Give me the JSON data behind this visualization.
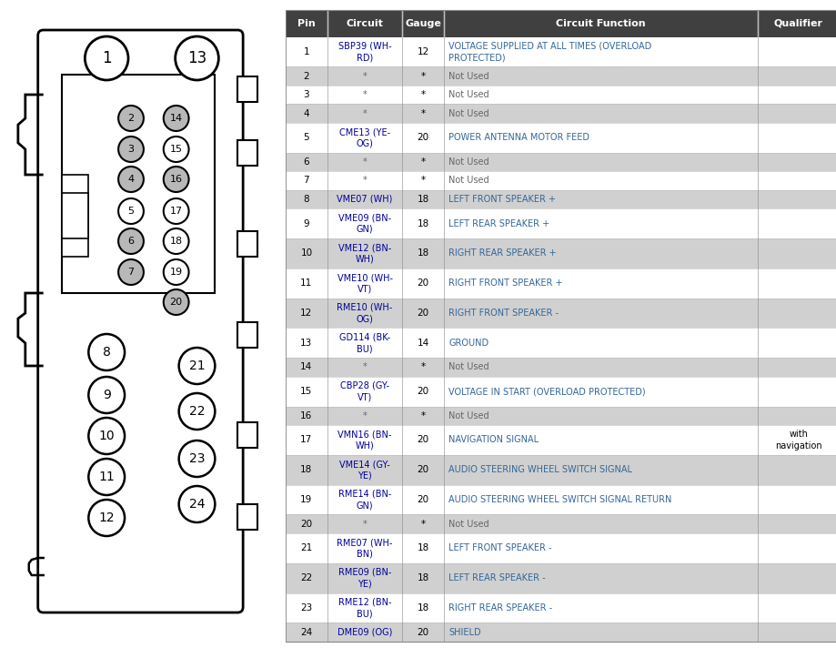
{
  "bg_color": "#ffffff",
  "header_bg": "#404040",
  "header_fg": "#ffffff",
  "odd_row_bg": "#ffffff",
  "even_row_bg": "#d0d0d0",
  "col_headers": [
    "Pin",
    "Circuit",
    "Gauge",
    "Circuit Function",
    "Qualifier"
  ],
  "rows": [
    {
      "pin": "1",
      "circuit": "SBP39 (WH-\nRD)",
      "gauge": "12",
      "function": "VOLTAGE SUPPLIED AT ALL TIMES (OVERLOAD\nPROTECTED)",
      "qualifier": "",
      "shaded": false,
      "two_line": true
    },
    {
      "pin": "2",
      "circuit": "*",
      "gauge": "*",
      "function": "Not Used",
      "qualifier": "",
      "shaded": true,
      "two_line": false
    },
    {
      "pin": "3",
      "circuit": "*",
      "gauge": "*",
      "function": "Not Used",
      "qualifier": "",
      "shaded": false,
      "two_line": false
    },
    {
      "pin": "4",
      "circuit": "*",
      "gauge": "*",
      "function": "Not Used",
      "qualifier": "",
      "shaded": true,
      "two_line": false
    },
    {
      "pin": "5",
      "circuit": "CME13 (YE-\nOG)",
      "gauge": "20",
      "function": "POWER ANTENNA MOTOR FEED",
      "qualifier": "",
      "shaded": false,
      "two_line": true
    },
    {
      "pin": "6",
      "circuit": "*",
      "gauge": "*",
      "function": "Not Used",
      "qualifier": "",
      "shaded": true,
      "two_line": false
    },
    {
      "pin": "7",
      "circuit": "*",
      "gauge": "*",
      "function": "Not Used",
      "qualifier": "",
      "shaded": false,
      "two_line": false
    },
    {
      "pin": "8",
      "circuit": "VME07 (WH)",
      "gauge": "18",
      "function": "LEFT FRONT SPEAKER +",
      "qualifier": "",
      "shaded": true,
      "two_line": false
    },
    {
      "pin": "9",
      "circuit": "VME09 (BN-\nGN)",
      "gauge": "18",
      "function": "LEFT REAR SPEAKER +",
      "qualifier": "",
      "shaded": false,
      "two_line": true
    },
    {
      "pin": "10",
      "circuit": "VME12 (BN-\nWH)",
      "gauge": "18",
      "function": "RIGHT REAR SPEAKER +",
      "qualifier": "",
      "shaded": true,
      "two_line": true
    },
    {
      "pin": "11",
      "circuit": "VME10 (WH-\nVT)",
      "gauge": "20",
      "function": "RIGHT FRONT SPEAKER +",
      "qualifier": "",
      "shaded": false,
      "two_line": true
    },
    {
      "pin": "12",
      "circuit": "RME10 (WH-\nOG)",
      "gauge": "20",
      "function": "RIGHT FRONT SPEAKER -",
      "qualifier": "",
      "shaded": true,
      "two_line": true
    },
    {
      "pin": "13",
      "circuit": "GD114 (BK-\nBU)",
      "gauge": "14",
      "function": "GROUND",
      "qualifier": "",
      "shaded": false,
      "two_line": true
    },
    {
      "pin": "14",
      "circuit": "*",
      "gauge": "*",
      "function": "Not Used",
      "qualifier": "",
      "shaded": true,
      "two_line": false
    },
    {
      "pin": "15",
      "circuit": "CBP28 (GY-\nVT)",
      "gauge": "20",
      "function": "VOLTAGE IN START (OVERLOAD PROTECTED)",
      "qualifier": "",
      "shaded": false,
      "two_line": true
    },
    {
      "pin": "16",
      "circuit": "*",
      "gauge": "*",
      "function": "Not Used",
      "qualifier": "",
      "shaded": true,
      "two_line": false
    },
    {
      "pin": "17",
      "circuit": "VMN16 (BN-\nWH)",
      "gauge": "20",
      "function": "NAVIGATION SIGNAL",
      "qualifier": "with\nnavigation",
      "shaded": false,
      "two_line": true
    },
    {
      "pin": "18",
      "circuit": "VME14 (GY-\nYE)",
      "gauge": "20",
      "function": "AUDIO STEERING WHEEL SWITCH SIGNAL",
      "qualifier": "",
      "shaded": true,
      "two_line": true
    },
    {
      "pin": "19",
      "circuit": "RME14 (BN-\nGN)",
      "gauge": "20",
      "function": "AUDIO STEERING WHEEL SWITCH SIGNAL RETURN",
      "qualifier": "",
      "shaded": false,
      "two_line": true
    },
    {
      "pin": "20",
      "circuit": "*",
      "gauge": "*",
      "function": "Not Used",
      "qualifier": "",
      "shaded": true,
      "two_line": false
    },
    {
      "pin": "21",
      "circuit": "RME07 (WH-\nBN)",
      "gauge": "18",
      "function": "LEFT FRONT SPEAKER -",
      "qualifier": "",
      "shaded": false,
      "two_line": true
    },
    {
      "pin": "22",
      "circuit": "RME09 (BN-\nYE)",
      "gauge": "18",
      "function": "LEFT REAR SPEAKER -",
      "qualifier": "",
      "shaded": true,
      "two_line": true
    },
    {
      "pin": "23",
      "circuit": "RME12 (BN-\nBU)",
      "gauge": "18",
      "function": "RIGHT REAR SPEAKER -",
      "qualifier": "",
      "shaded": false,
      "two_line": true
    },
    {
      "pin": "24",
      "circuit": "DME09 (OG)",
      "gauge": "20",
      "function": "SHIELD",
      "qualifier": "",
      "shaded": true,
      "two_line": false
    }
  ],
  "circuit_color": "#000099",
  "function_color": "#336699",
  "not_used_color": "#666666",
  "ground_color": "#336699",
  "pin_color": "#000000",
  "gauge_color": "#000000",
  "gray_pins": [
    2,
    3,
    4,
    6,
    7,
    14,
    16,
    20
  ],
  "gray_fill": "#b8b8b8",
  "white_fill": "#ffffff"
}
